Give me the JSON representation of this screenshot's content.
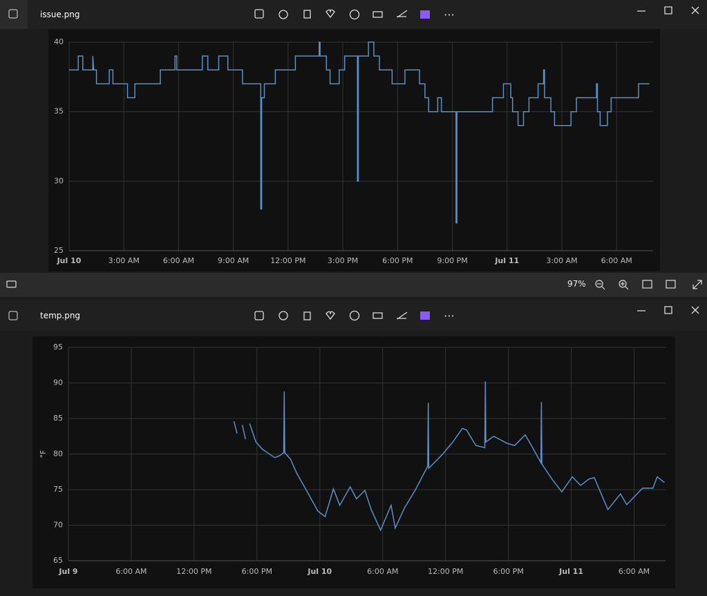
{
  "windows": [
    {
      "title": "issue.png",
      "zoom": "97%",
      "chart": {
        "type": "line",
        "xlim": [
          0,
          32
        ],
        "ylim": [
          25,
          40
        ],
        "xticks": [
          {
            "value": 0,
            "label": "Jul 10"
          },
          {
            "value": 3,
            "label": "3:00 AM"
          },
          {
            "value": 6,
            "label": "6:00 AM"
          },
          {
            "value": 9,
            "label": "9:00 AM"
          },
          {
            "value": 12,
            "label": "12:00 PM"
          },
          {
            "value": 15,
            "label": "3:00 PM"
          },
          {
            "value": 18,
            "label": "6:00 PM"
          },
          {
            "value": 21,
            "label": "9:00 PM"
          },
          {
            "value": 24,
            "label": "Jul 11"
          },
          {
            "value": 27,
            "label": "3:00 AM"
          },
          {
            "value": 30,
            "label": "6:00 AM"
          }
        ],
        "yticks": [
          25,
          30,
          35,
          40
        ],
        "grid": true,
        "x": [
          0,
          0.5,
          0.5,
          0.75,
          0.75,
          1.3,
          1.3,
          1.35,
          1.5,
          1.5,
          2.2,
          2.2,
          2.4,
          2.4,
          3.2,
          3.2,
          3.6,
          3.6,
          5.0,
          5.0,
          5.8,
          5.8,
          5.9,
          5.9,
          7.3,
          7.3,
          7.6,
          7.6,
          8.2,
          8.2,
          8.7,
          8.7,
          9.5,
          9.5,
          10.5,
          10.5,
          10.55,
          10.55,
          10.7,
          10.7,
          11.3,
          11.3,
          12.4,
          12.4,
          13.7,
          13.7,
          13.75,
          13.75,
          14.1,
          14.1,
          14.3,
          14.3,
          14.8,
          14.8,
          15.1,
          15.1,
          15.8,
          15.8,
          15.85,
          15.85,
          16.4,
          16.4,
          16.7,
          16.7,
          17.0,
          17.0,
          17.7,
          17.7,
          18.4,
          18.4,
          19.2,
          19.2,
          19.5,
          19.5,
          19.7,
          19.7,
          20.2,
          20.2,
          20.4,
          20.4,
          21.2,
          21.2,
          21.25,
          21.25,
          23.2,
          23.2,
          23.8,
          23.8,
          24.2,
          24.2,
          24.3,
          24.3,
          24.6,
          24.6,
          24.9,
          24.9,
          25.2,
          25.2,
          25.7,
          25.7,
          26.0,
          26.0,
          26.05,
          26.05,
          26.4,
          26.4,
          26.6,
          26.6,
          27.5,
          27.5,
          27.8,
          27.8,
          28.9,
          28.9,
          28.95,
          28.95,
          29.1,
          29.1,
          29.5,
          29.5,
          29.7,
          29.7,
          31.2,
          31.2,
          31.8
        ],
        "series": [
          {
            "color": "#5b8fc7",
            "values": [
              38,
              38,
              39,
              39,
              38,
              38,
              39,
              38,
              38,
              37,
              37,
              38,
              38,
              37,
              37,
              36,
              36,
              37,
              37,
              38,
              38,
              39,
              39,
              38,
              38,
              39,
              39,
              38,
              38,
              39,
              39,
              38,
              38,
              37,
              37,
              28,
              28,
              36,
              36,
              37,
              37,
              38,
              38,
              39,
              39,
              40,
              40,
              39,
              39,
              38,
              38,
              37,
              37,
              38,
              38,
              39,
              39,
              30,
              30,
              39,
              39,
              40,
              40,
              39,
              39,
              38,
              38,
              37,
              37,
              38,
              38,
              37,
              37,
              36,
              36,
              35,
              35,
              36,
              36,
              35,
              35,
              27,
              27,
              35,
              35,
              36,
              36,
              37,
              37,
              36,
              36,
              35,
              35,
              34,
              34,
              35,
              35,
              36,
              36,
              37,
              37,
              38,
              38,
              36,
              36,
              35,
              35,
              34,
              34,
              35,
              35,
              36,
              36,
              37,
              37,
              35,
              35,
              34,
              34,
              35,
              35,
              36,
              36,
              37,
              37
            ]
          }
        ]
      }
    },
    {
      "title": "temp.png",
      "chart": {
        "type": "line",
        "ylabel": "°F",
        "xlim": [
          0,
          57
        ],
        "ylim": [
          65,
          95
        ],
        "xticks": [
          {
            "value": 0,
            "label": "Jul 9"
          },
          {
            "value": 6,
            "label": "6:00 AM"
          },
          {
            "value": 12,
            "label": "12:00 PM"
          },
          {
            "value": 18,
            "label": "6:00 PM"
          },
          {
            "value": 24,
            "label": "Jul 10"
          },
          {
            "value": 30,
            "label": "6:00 AM"
          },
          {
            "value": 36,
            "label": "12:00 PM"
          },
          {
            "value": 42,
            "label": "6:00 PM"
          },
          {
            "value": 48,
            "label": "Jul 11"
          },
          {
            "value": 54,
            "label": "6:00 AM"
          }
        ],
        "yticks": [
          65,
          70,
          75,
          80,
          85,
          90,
          95
        ],
        "grid": true,
        "x": [
          15.8,
          16.1,
          16.3,
          16.6,
          16.9,
          17.1,
          17.3,
          17.9,
          18.5,
          19.7,
          20.2,
          20.55,
          20.6,
          20.65,
          21.2,
          21.8,
          22.8,
          23.8,
          24.5,
          25.3,
          25.9,
          26.9,
          27.5,
          28.3,
          28.9,
          29.8,
          30.8,
          31.2,
          32.1,
          33.1,
          34.3,
          34.35,
          34.4,
          35.6,
          36.7,
          37.6,
          38.0,
          38.9,
          39.75,
          39.8,
          39.85,
          40.6,
          41.9,
          42.6,
          43.6,
          44.2,
          45.1,
          45.15,
          45.2,
          46.2,
          47.1,
          48.1,
          48.9,
          49.7,
          50.2,
          51.5,
          52.7,
          53.3,
          54.8,
          55.8,
          56.2,
          56.9
        ],
        "series": [
          {
            "color": "#5b8fc7",
            "values": [
              84.6,
              82.9,
              null,
              84.1,
              82.1,
              null,
              84.3,
              81.7,
              80.7,
              79.5,
              79.8,
              80.2,
              88.8,
              80.2,
              79.3,
              77.3,
              74.7,
              72.0,
              71.2,
              75.1,
              72.8,
              75.4,
              73.7,
              74.9,
              72.2,
              69.3,
              72.8,
              69.6,
              72.5,
              74.9,
              78.3,
              87.2,
              78.0,
              79.8,
              81.7,
              83.6,
              83.4,
              81.2,
              80.9,
              90.2,
              81.7,
              82.5,
              81.5,
              81.2,
              82.7,
              81.2,
              78.8,
              87.3,
              78.6,
              76.4,
              74.7,
              76.8,
              75.6,
              76.5,
              76.7,
              72.2,
              74.4,
              72.9,
              75.2,
              75.2,
              76.8,
              76.0
            ]
          }
        ]
      }
    }
  ]
}
